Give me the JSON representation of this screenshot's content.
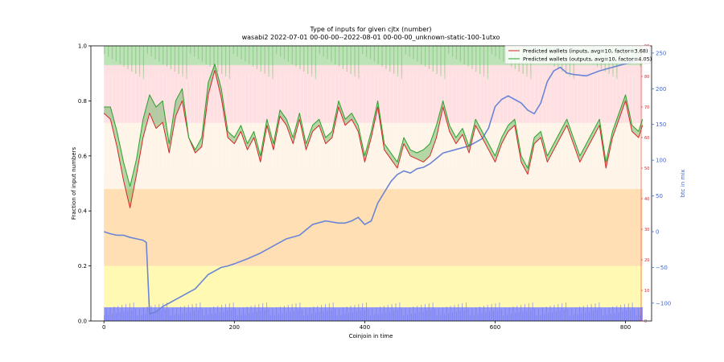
{
  "chart_data": {
    "type": "line",
    "title": "Type of inputs for given cjtx (number)",
    "subtitle": "wasabi2 2022-07-01 00-00-00--2022-08-01 00-00-00_unknown-static-100-1utxo",
    "xlabel": "Coinjoin in time",
    "ylabel": "Fraction of input numbers",
    "y2label": "btc in mix",
    "xlim": [
      -20,
      840
    ],
    "ylim": [
      0,
      1
    ],
    "y3lim": [
      0,
      90
    ],
    "y2lim": [
      -125,
      260
    ],
    "x_ticks": [
      0,
      200,
      400,
      600,
      800
    ],
    "y_ticks": [
      0.0,
      0.2,
      0.4,
      0.6,
      0.8,
      1.0
    ],
    "y2_ticks": [
      -100,
      -50,
      0,
      50,
      100,
      150,
      200,
      250
    ],
    "y3_ticks": [
      0,
      10,
      20,
      30,
      40,
      50,
      60,
      70,
      80,
      90
    ],
    "legend_placement": "top-right",
    "colors": {
      "inputs": "#d62728",
      "outputs": "#2ca02c",
      "btc": "#6a85d6",
      "fill": "#2ca02c"
    },
    "series": [
      {
        "name": "Predicted wallets (inputs, avg=10, factor=3.68)",
        "axis": "right-inner",
        "x": [
          0,
          10,
          20,
          30,
          40,
          50,
          60,
          70,
          80,
          90,
          100,
          110,
          120,
          130,
          140,
          150,
          160,
          170,
          180,
          190,
          200,
          210,
          220,
          230,
          240,
          250,
          260,
          270,
          280,
          290,
          300,
          310,
          320,
          330,
          340,
          350,
          360,
          370,
          380,
          390,
          400,
          410,
          420,
          430,
          440,
          450,
          460,
          470,
          480,
          490,
          500,
          510,
          520,
          530,
          540,
          550,
          560,
          570,
          580,
          590,
          600,
          610,
          620,
          630,
          640,
          650,
          660,
          670,
          680,
          690,
          700,
          710,
          720,
          730,
          740,
          750,
          760,
          770,
          780,
          790,
          800,
          810,
          820,
          826
        ],
        "values": [
          68,
          66,
          57,
          46,
          37,
          48,
          60,
          68,
          63,
          65,
          55,
          67,
          72,
          60,
          55,
          57,
          74,
          82,
          73,
          60,
          58,
          62,
          56,
          60,
          52,
          64,
          56,
          67,
          64,
          58,
          66,
          56,
          62,
          64,
          58,
          60,
          70,
          64,
          66,
          62,
          52,
          60,
          70,
          56,
          53,
          50,
          58,
          54,
          53,
          52,
          54,
          60,
          70,
          62,
          58,
          61,
          55,
          64,
          60,
          56,
          52,
          58,
          62,
          64,
          52,
          48,
          58,
          60,
          52,
          56,
          60,
          64,
          58,
          52,
          56,
          60,
          64,
          50,
          60,
          66,
          72,
          62,
          60,
          64
        ]
      },
      {
        "name": "Predicted wallets (outputs, avg=10, factor=4.05)",
        "axis": "right-inner",
        "x": [
          0,
          10,
          20,
          30,
          40,
          50,
          60,
          70,
          80,
          90,
          100,
          110,
          120,
          130,
          140,
          150,
          160,
          170,
          180,
          190,
          200,
          210,
          220,
          230,
          240,
          250,
          260,
          270,
          280,
          290,
          300,
          310,
          320,
          330,
          340,
          350,
          360,
          370,
          380,
          390,
          400,
          410,
          420,
          430,
          440,
          450,
          460,
          470,
          480,
          490,
          500,
          510,
          520,
          530,
          540,
          550,
          560,
          570,
          580,
          590,
          600,
          610,
          620,
          630,
          640,
          650,
          660,
          670,
          680,
          690,
          700,
          710,
          720,
          730,
          740,
          750,
          760,
          770,
          780,
          790,
          800,
          810,
          820,
          826
        ],
        "values": [
          70,
          70,
          62,
          52,
          44,
          53,
          66,
          74,
          70,
          72,
          58,
          72,
          76,
          60,
          56,
          60,
          78,
          84,
          76,
          62,
          60,
          64,
          58,
          62,
          54,
          66,
          58,
          69,
          66,
          60,
          68,
          58,
          64,
          66,
          60,
          62,
          72,
          66,
          68,
          64,
          54,
          62,
          72,
          58,
          55,
          52,
          60,
          56,
          55,
          56,
          58,
          64,
          72,
          64,
          60,
          63,
          57,
          66,
          62,
          58,
          54,
          60,
          64,
          66,
          54,
          50,
          60,
          62,
          54,
          58,
          62,
          66,
          60,
          54,
          58,
          62,
          66,
          52,
          62,
          68,
          74,
          64,
          62,
          66
        ]
      },
      {
        "name": "btc in mix",
        "axis": "right-outer",
        "x": [
          0,
          10,
          20,
          30,
          40,
          50,
          60,
          65,
          70,
          80,
          90,
          100,
          110,
          120,
          130,
          140,
          150,
          160,
          170,
          180,
          190,
          200,
          220,
          240,
          260,
          280,
          300,
          320,
          340,
          360,
          370,
          380,
          390,
          400,
          410,
          420,
          430,
          440,
          450,
          460,
          470,
          480,
          490,
          500,
          520,
          540,
          560,
          570,
          580,
          590,
          600,
          610,
          620,
          630,
          640,
          650,
          660,
          670,
          680,
          690,
          700,
          710,
          720,
          740,
          760,
          780,
          800,
          820
        ],
        "values": [
          0,
          -3,
          -5,
          -5,
          -8,
          -10,
          -12,
          -15,
          -115,
          -112,
          -105,
          -100,
          -95,
          -90,
          -85,
          -80,
          -70,
          -60,
          -55,
          -50,
          -48,
          -45,
          -38,
          -30,
          -20,
          -10,
          -5,
          10,
          15,
          12,
          12,
          15,
          20,
          10,
          15,
          40,
          55,
          70,
          80,
          85,
          82,
          88,
          90,
          95,
          110,
          115,
          120,
          125,
          130,
          145,
          175,
          185,
          190,
          185,
          180,
          170,
          165,
          180,
          210,
          225,
          230,
          222,
          220,
          218,
          225,
          230,
          235,
          240
        ]
      }
    ],
    "stacked_background": {
      "description_colors": [
        "#8a8ef5",
        "#fff79a",
        "#ffd49a",
        "#fff0e0",
        "#ffd6d8",
        "#a8d8a0"
      ],
      "layer_tops": [
        0.05,
        0.2,
        0.48,
        0.72,
        0.93,
        1.0
      ]
    }
  }
}
